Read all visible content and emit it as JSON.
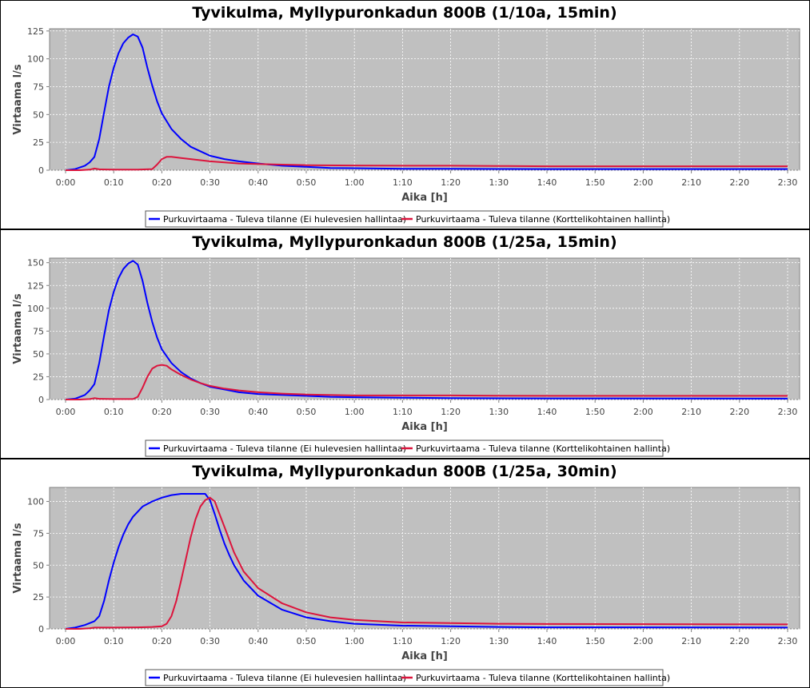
{
  "chart_data": [
    {
      "type": "line",
      "title": "Tyvikulma, Myllypuronkadun 800B (1/10a, 15min)",
      "xlabel": "Aika [h]",
      "ylabel": "Virtaama l/s",
      "xlim": [
        0,
        150
      ],
      "ylim": [
        0,
        127
      ],
      "yticks": [
        0,
        25,
        50,
        75,
        100,
        125
      ],
      "xticks": [
        0,
        10,
        20,
        30,
        40,
        50,
        60,
        70,
        80,
        90,
        100,
        110,
        120,
        130,
        140,
        150
      ],
      "xtick_labels": [
        "0:00",
        "0:10",
        "0:20",
        "0:30",
        "0:40",
        "0:50",
        "1:00",
        "1:10",
        "1:20",
        "1:30",
        "1:40",
        "1:50",
        "2:00",
        "2:10",
        "2:20",
        "2:30"
      ],
      "grid": true,
      "legend_position": "bottom",
      "series": [
        {
          "name": "Purkuvirtaama - Tuleva tilanne (Ei hulevesien hallintaa)",
          "color": "#0000ff",
          "x": [
            0,
            2,
            4,
            5,
            6,
            7,
            8,
            9,
            10,
            11,
            12,
            13,
            14,
            15,
            16,
            17,
            18,
            19,
            20,
            22,
            24,
            26,
            28,
            30,
            33,
            36,
            40,
            45,
            50,
            55,
            60,
            65,
            70,
            80,
            90,
            100,
            120,
            150
          ],
          "y": [
            0,
            1,
            4,
            7,
            12,
            28,
            52,
            75,
            92,
            105,
            114,
            119,
            122,
            120,
            110,
            92,
            76,
            62,
            51,
            37,
            28,
            21,
            17,
            13,
            10,
            8,
            6,
            4,
            3,
            2,
            1.8,
            1.5,
            1.3,
            1.2,
            1.1,
            1,
            1,
            1
          ]
        },
        {
          "name": "Purkuvirtaama - Tuleva tilanne (Korttelikohtainen hallinta)",
          "color": "#dc143c",
          "x": [
            0,
            3,
            5,
            6,
            7,
            10,
            15,
            18,
            19,
            20,
            21,
            22,
            24,
            26,
            28,
            30,
            33,
            36,
            40,
            45,
            50,
            60,
            70,
            80,
            90,
            100,
            120,
            150
          ],
          "y": [
            0,
            0,
            0.5,
            1.5,
            0.8,
            0.5,
            0.5,
            1,
            5,
            10,
            12,
            12,
            11,
            10,
            9,
            8,
            7,
            6,
            5.5,
            5,
            4.5,
            4.2,
            4,
            4,
            3.8,
            3.5,
            3.5,
            3.5
          ]
        }
      ]
    },
    {
      "type": "line",
      "title": "Tyvikulma, Myllypuronkadun 800B (1/25a, 15min)",
      "xlabel": "Aika [h]",
      "ylabel": "Virtaama l/s",
      "xlim": [
        0,
        150
      ],
      "ylim": [
        0,
        155
      ],
      "yticks": [
        0,
        25,
        50,
        75,
        100,
        125,
        150
      ],
      "xticks": [
        0,
        10,
        20,
        30,
        40,
        50,
        60,
        70,
        80,
        90,
        100,
        110,
        120,
        130,
        140,
        150
      ],
      "xtick_labels": [
        "0:00",
        "0:10",
        "0:20",
        "0:30",
        "0:40",
        "0:50",
        "1:00",
        "1:10",
        "1:20",
        "1:30",
        "1:40",
        "1:50",
        "2:00",
        "2:10",
        "2:20",
        "2:30"
      ],
      "grid": true,
      "legend_position": "bottom",
      "series": [
        {
          "name": "Purkuvirtaama - Tuleva tilanne (Ei hulevesien hallintaa)",
          "color": "#0000ff",
          "x": [
            0,
            2,
            4,
            5,
            6,
            7,
            8,
            9,
            10,
            11,
            12,
            13,
            14,
            15,
            16,
            17,
            18,
            19,
            20,
            22,
            24,
            26,
            28,
            30,
            33,
            36,
            40,
            45,
            50,
            55,
            60,
            70,
            80,
            100,
            150
          ],
          "y": [
            0,
            1,
            5,
            10,
            17,
            40,
            70,
            98,
            118,
            133,
            143,
            149,
            152,
            148,
            130,
            106,
            85,
            68,
            55,
            40,
            30,
            23,
            18,
            14,
            11,
            8,
            6,
            5,
            4,
            3,
            2.5,
            2,
            1.5,
            1.2,
            1
          ]
        },
        {
          "name": "Purkuvirtaama - Tuleva tilanne (Korttelikohtainen hallinta)",
          "color": "#dc143c",
          "x": [
            0,
            3,
            5,
            6,
            7,
            10,
            14,
            15,
            16,
            17,
            18,
            19,
            20,
            21,
            22,
            24,
            26,
            28,
            30,
            33,
            36,
            40,
            45,
            50,
            60,
            70,
            80,
            90,
            100,
            110,
            120,
            150
          ],
          "y": [
            0,
            0,
            0.5,
            1.5,
            0.8,
            0.5,
            0.5,
            3,
            13,
            25,
            34,
            37,
            38,
            37,
            33,
            27,
            22,
            18,
            15,
            12,
            10,
            8,
            6.5,
            5.5,
            4.5,
            4.5,
            4.5,
            4.2,
            4,
            4,
            4,
            4
          ]
        }
      ]
    },
    {
      "type": "line",
      "title": "Tyvikulma, Myllypuronkadun 800B (1/25a, 30min)",
      "xlabel": "Aika [h]",
      "ylabel": "Virtaama l/s",
      "xlim": [
        0,
        150
      ],
      "ylim": [
        0,
        111
      ],
      "yticks": [
        0,
        25,
        50,
        75,
        100
      ],
      "xticks": [
        0,
        10,
        20,
        30,
        40,
        50,
        60,
        70,
        80,
        90,
        100,
        110,
        120,
        130,
        140,
        150
      ],
      "xtick_labels": [
        "0:00",
        "0:10",
        "0:20",
        "0:30",
        "0:40",
        "0:50",
        "1:00",
        "1:10",
        "1:20",
        "1:30",
        "1:40",
        "1:50",
        "2:00",
        "2:10",
        "2:20",
        "2:30"
      ],
      "grid": true,
      "legend_position": "bottom",
      "series": [
        {
          "name": "Purkuvirtaama - Tuleva tilanne (Ei hulevesien hallintaa)",
          "color": "#0000ff",
          "x": [
            0,
            2,
            4,
            6,
            7,
            8,
            9,
            10,
            11,
            12,
            13,
            14,
            15,
            16,
            18,
            20,
            22,
            24,
            26,
            28,
            29,
            30,
            31,
            32,
            33,
            34,
            35,
            37,
            40,
            45,
            50,
            55,
            60,
            70,
            80,
            90,
            100,
            150
          ],
          "y": [
            0,
            1,
            3,
            6,
            10,
            22,
            38,
            52,
            64,
            74,
            82,
            88,
            92,
            96,
            100,
            103,
            105,
            106,
            106,
            106,
            106,
            101,
            90,
            78,
            67,
            58,
            50,
            38,
            26,
            15,
            9,
            6,
            4,
            2.5,
            2,
            1.5,
            1.2,
            1
          ]
        },
        {
          "name": "Purkuvirtaama - Tuleva tilanne (Korttelikohtainen hallinta)",
          "color": "#dc143c",
          "x": [
            0,
            3,
            5,
            6,
            10,
            15,
            18,
            20,
            21,
            22,
            23,
            24,
            25,
            26,
            27,
            28,
            29,
            30,
            31,
            32,
            33,
            34,
            35,
            37,
            40,
            45,
            50,
            55,
            60,
            70,
            80,
            90,
            100,
            150
          ],
          "y": [
            0,
            0,
            0.5,
            1,
            1,
            1.2,
            1.5,
            2,
            4,
            10,
            22,
            38,
            55,
            72,
            86,
            96,
            101,
            103,
            100,
            90,
            80,
            70,
            60,
            45,
            32,
            20,
            13,
            9,
            7,
            5,
            4.5,
            4,
            3.8,
            3.5
          ]
        }
      ]
    }
  ]
}
